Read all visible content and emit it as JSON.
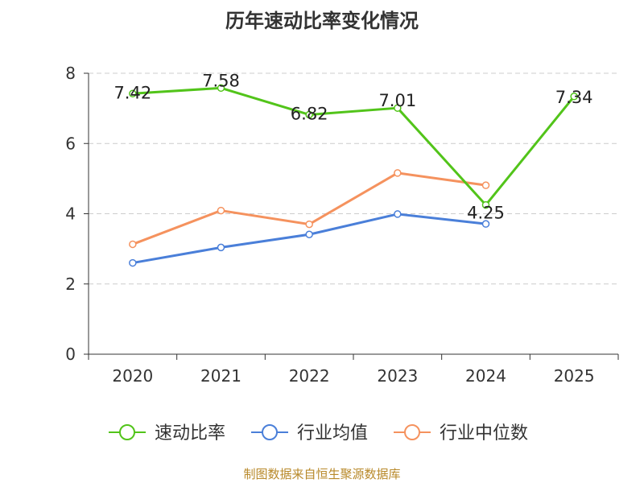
{
  "chart_data": {
    "type": "line",
    "title": "历年速动比率变化情况",
    "categories": [
      "2020",
      "2021",
      "2022",
      "2023",
      "2024",
      "2025"
    ],
    "ylim": [
      0,
      8
    ],
    "yticks": [
      0,
      2,
      4,
      6,
      8
    ],
    "grid": "horizontal-dashed",
    "legend_position": "bottom",
    "series": [
      {
        "name": "速动比率",
        "color": "#52c41a",
        "values": [
          7.42,
          7.58,
          6.82,
          7.01,
          4.25,
          7.34
        ],
        "labels": [
          "7.42",
          "7.58",
          "6.82",
          "7.01",
          "4.25",
          "7.34"
        ]
      },
      {
        "name": "行业均值",
        "color": "#4a7fd9",
        "values": [
          2.6,
          3.04,
          3.41,
          3.99,
          3.71,
          null
        ]
      },
      {
        "name": "行业中位数",
        "color": "#f5925e",
        "values": [
          3.13,
          4.09,
          3.7,
          5.16,
          4.81,
          null
        ]
      }
    ]
  },
  "source_text": "制图数据来自恒生聚源数据库"
}
